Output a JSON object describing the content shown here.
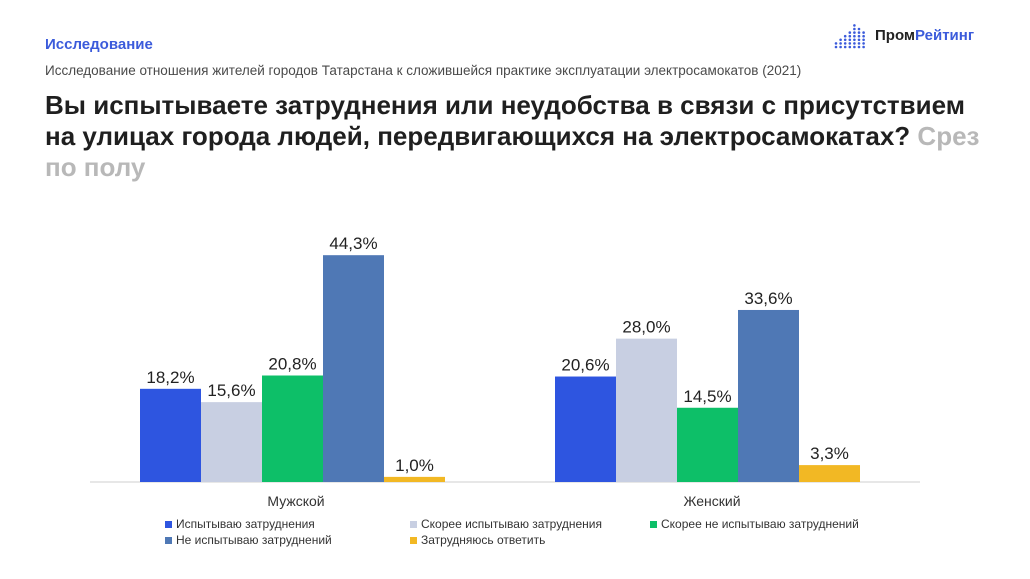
{
  "header": {
    "section": "Исследование",
    "subtitle": "Исследование отношения жителей городов Татарстана к сложившейся практике эксплуатации электросамокатов (2021)",
    "title_main": "Вы испытываете затруднения или неудобства в связи с присутствием на улицах города людей, передвигающихся на электросамокатах?",
    "title_muted": "Срез по полу"
  },
  "logo": {
    "icon": "dot-bars-logo-icon",
    "text_dark": "Пром",
    "text_accent": "Рейтинг",
    "accent_color": "#3b5bdb"
  },
  "chart_data": {
    "type": "bar",
    "categories": [
      "Мужской",
      "Женский"
    ],
    "series": [
      {
        "name": "Испытываю затруднения",
        "values": [
          18.2,
          20.6
        ],
        "labels": [
          "18,2%",
          "20,6%"
        ],
        "color": "#2e55e0"
      },
      {
        "name": "Скорее испытываю затруднения",
        "values": [
          15.6,
          28.0
        ],
        "labels": [
          "15,6%",
          "28,0%"
        ],
        "color": "#c8cfe2"
      },
      {
        "name": "Скорее не испытываю затруднений",
        "values": [
          20.8,
          14.5
        ],
        "labels": [
          "20,8%",
          "14,5%"
        ],
        "color": "#0dbf68"
      },
      {
        "name": "Не испытываю затруднений",
        "values": [
          44.3,
          33.6
        ],
        "labels": [
          "44,3%",
          "33,6%"
        ],
        "color": "#4f78b5"
      },
      {
        "name": "Затрудняюсь ответить",
        "values": [
          1.0,
          3.3
        ],
        "labels": [
          "1,0%",
          "3,3%"
        ],
        "color": "#f2b824"
      }
    ],
    "ylim": [
      0,
      50
    ],
    "grid": false,
    "legend_placement": "bottom"
  }
}
